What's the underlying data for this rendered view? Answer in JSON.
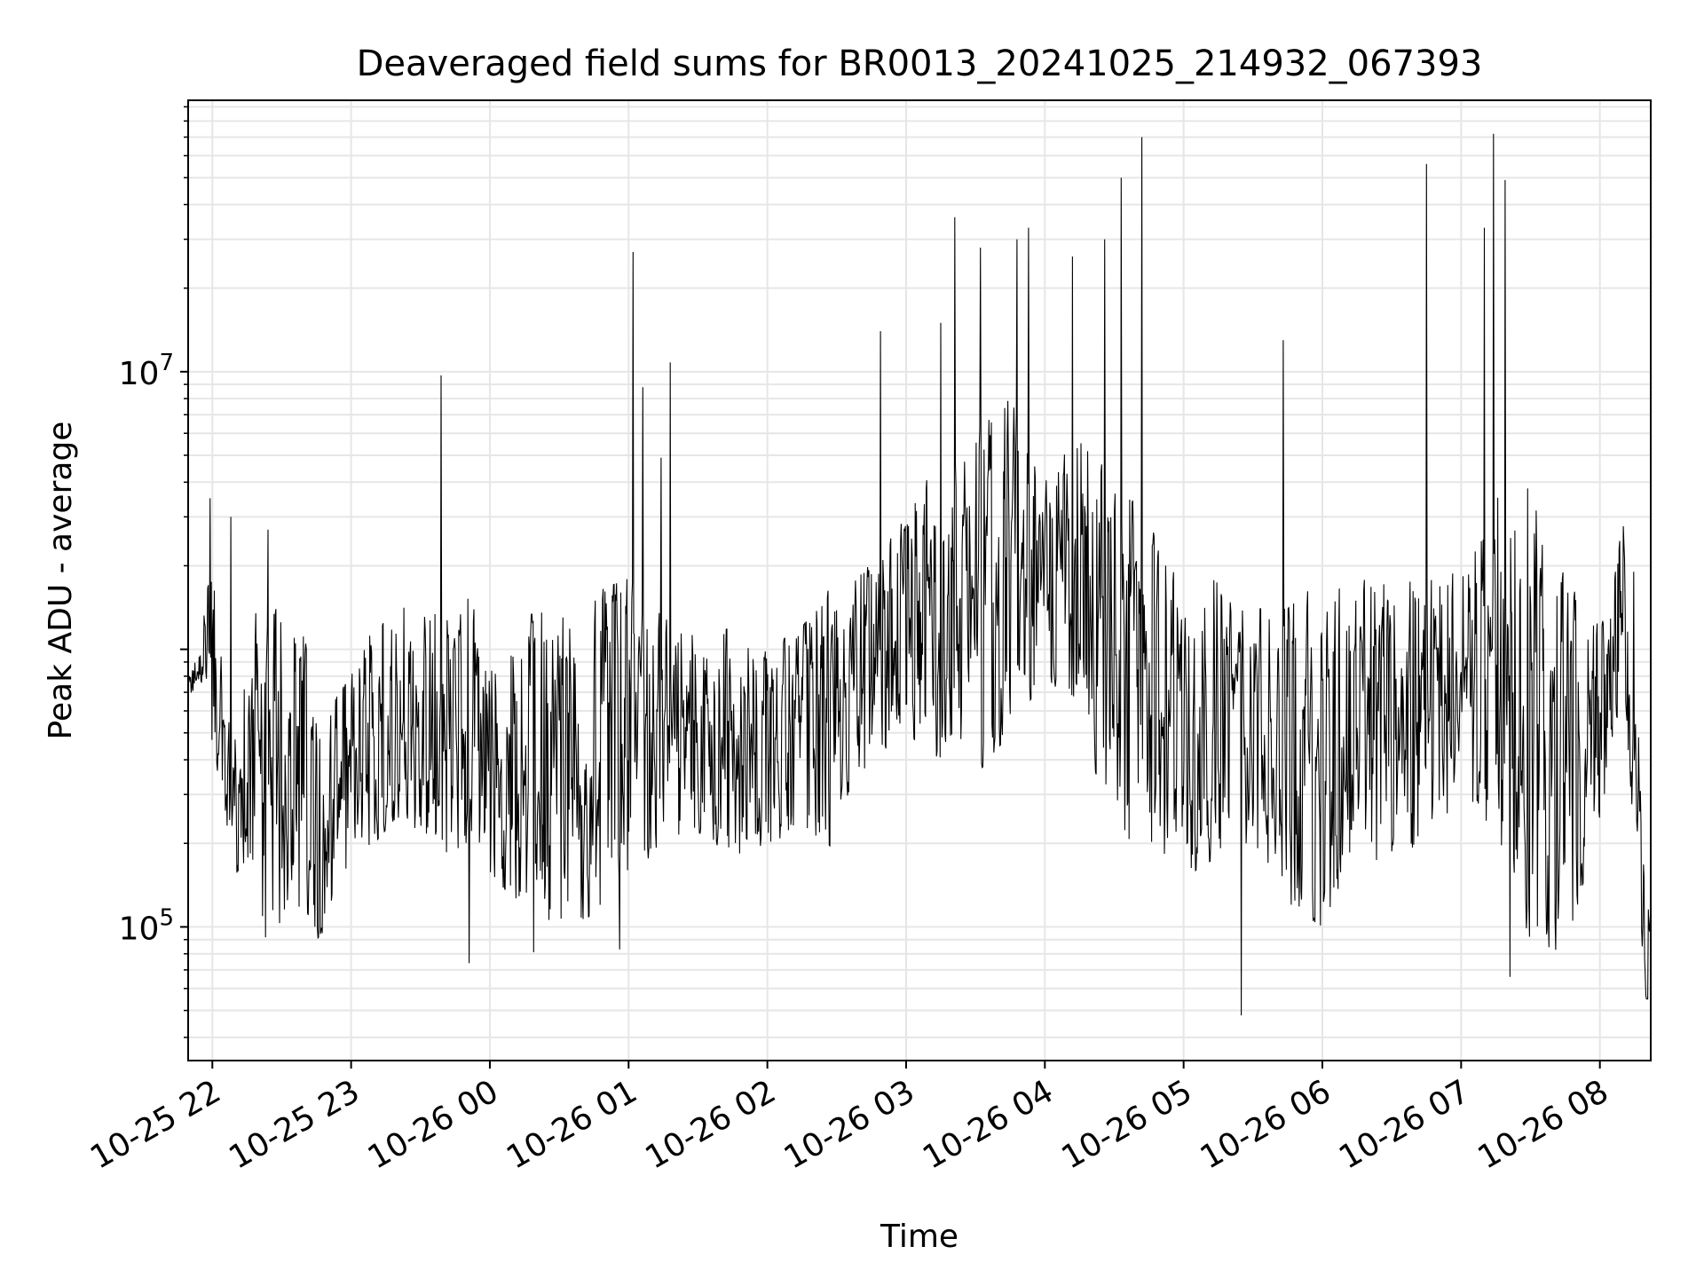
{
  "chart_data": {
    "type": "line",
    "title": "Deaveraged field sums for BR0013_20241025_214932_067393",
    "xlabel": "Time",
    "ylabel": "Peak ADU - average",
    "xlim": [
      "2024-10-25 21:49:32",
      "2024-10-26 08:22:00"
    ],
    "yscale": "log",
    "ylim": [
      33000,
      95000000
    ],
    "grid": true,
    "x_ticks": [
      {
        "t": "2024-10-25 22:00",
        "label": "10-25 22"
      },
      {
        "t": "2024-10-25 23:00",
        "label": "10-25 23"
      },
      {
        "t": "2024-10-26 00:00",
        "label": "10-26 00"
      },
      {
        "t": "2024-10-26 01:00",
        "label": "10-26 01"
      },
      {
        "t": "2024-10-26 02:00",
        "label": "10-26 02"
      },
      {
        "t": "2024-10-26 03:00",
        "label": "10-26 03"
      },
      {
        "t": "2024-10-26 04:00",
        "label": "10-26 04"
      },
      {
        "t": "2024-10-26 05:00",
        "label": "10-26 05"
      },
      {
        "t": "2024-10-26 06:00",
        "label": "10-26 06"
      },
      {
        "t": "2024-10-26 07:00",
        "label": "10-26 07"
      },
      {
        "t": "2024-10-26 08:00",
        "label": "10-26 08"
      }
    ],
    "y_ticks": [
      {
        "value": 100000,
        "base": "10",
        "exp": "5"
      },
      {
        "value": 10000000,
        "base": "10",
        "exp": "7"
      }
    ],
    "y_ticks_unlabeled": [
      1000000
    ],
    "line_color": "#000000",
    "series": [
      {
        "x": [
          "2024-10-25 21:49",
          "2024-10-25 21:52",
          "2024-10-25 21:55",
          "2024-10-25 21:58",
          "2024-10-25 22:00",
          "2024-10-25 22:03",
          "2024-10-25 22:06",
          "2024-10-25 22:09",
          "2024-10-25 22:12",
          "2024-10-25 22:15",
          "2024-10-25 22:20",
          "2024-10-25 22:25",
          "2024-10-25 22:30",
          "2024-10-25 22:35",
          "2024-10-25 22:40",
          "2024-10-25 22:45",
          "2024-10-25 22:50",
          "2024-10-25 22:55",
          "2024-10-25 23:00",
          "2024-10-25 23:10",
          "2024-10-25 23:20",
          "2024-10-25 23:30",
          "2024-10-25 23:40",
          "2024-10-25 23:50",
          "2024-10-26 00:00",
          "2024-10-26 00:15",
          "2024-10-26 00:30",
          "2024-10-26 00:45",
          "2024-10-26 01:00",
          "2024-10-26 01:15",
          "2024-10-26 01:30",
          "2024-10-26 01:45",
          "2024-10-26 02:00",
          "2024-10-26 02:15",
          "2024-10-26 02:30",
          "2024-10-26 02:45",
          "2024-10-26 03:00",
          "2024-10-26 03:15",
          "2024-10-26 03:30",
          "2024-10-26 03:45",
          "2024-10-26 04:00",
          "2024-10-26 04:15",
          "2024-10-26 04:30",
          "2024-10-26 04:45",
          "2024-10-26 05:00",
          "2024-10-26 05:15",
          "2024-10-26 05:30",
          "2024-10-26 05:45",
          "2024-10-26 06:00",
          "2024-10-26 06:15",
          "2024-10-26 06:30",
          "2024-10-26 06:45",
          "2024-10-26 07:00",
          "2024-10-26 07:15",
          "2024-10-26 07:30",
          "2024-10-26 07:45",
          "2024-10-26 08:00",
          "2024-10-26 08:05",
          "2024-10-26 08:10",
          "2024-10-26 08:15",
          "2024-10-26 08:20"
        ],
        "lo": [
          620000,
          700000,
          750000,
          600000,
          450000,
          300000,
          180000,
          120000,
          90000,
          80000,
          75000,
          85000,
          90000,
          100000,
          120000,
          90000,
          100000,
          110000,
          150000,
          200000,
          250000,
          200000,
          180000,
          200000,
          150000,
          120000,
          100000,
          110000,
          150000,
          200000,
          220000,
          180000,
          200000,
          180000,
          200000,
          400000,
          500000,
          400000,
          350000,
          500000,
          800000,
          600000,
          200000,
          180000,
          150000,
          180000,
          200000,
          120000,
          100000,
          200000,
          150000,
          200000,
          300000,
          200000,
          90000,
          80000,
          250000,
          400000,
          800000,
          200000,
          55000
        ],
        "hi": [
          750000,
          900000,
          1000000,
          2000000,
          2000000,
          1000000,
          800000,
          600000,
          500000,
          1200000,
          1400000,
          1500000,
          1300000,
          1300000,
          1200000,
          800000,
          600000,
          700000,
          800000,
          1300000,
          1500000,
          1400000,
          1500000,
          1700000,
          900000,
          1300000,
          1500000,
          1600000,
          1800000,
          1300000,
          1100000,
          1200000,
          1000000,
          1200000,
          1800000,
          2000000,
          3000000,
          5000000,
          6000000,
          8000000,
          4000000,
          6000000,
          4000000,
          3000000,
          2000000,
          1800000,
          1400000,
          1400000,
          1800000,
          1800000,
          1700000,
          1800000,
          1900000,
          3500000,
          4000000,
          1800000,
          1200000,
          1500000,
          3000000,
          2000000,
          120000
        ],
        "spikes": [
          {
            "t": "2024-10-25 21:59",
            "value": 3500000
          },
          {
            "t": "2024-10-25 22:08",
            "value": 3000000
          },
          {
            "t": "2024-10-25 22:24",
            "value": 2700000
          },
          {
            "t": "2024-10-25 23:39",
            "value": 9700000
          },
          {
            "t": "2024-10-25 23:51",
            "value": 74000
          },
          {
            "t": "2024-10-26 00:19",
            "value": 81000
          },
          {
            "t": "2024-10-26 00:56",
            "value": 83000
          },
          {
            "t": "2024-10-26 01:02",
            "value": 27000000
          },
          {
            "t": "2024-10-26 01:06",
            "value": 8800000
          },
          {
            "t": "2024-10-26 01:18",
            "value": 10800000
          },
          {
            "t": "2024-10-26 01:14",
            "value": 4900000
          },
          {
            "t": "2024-10-26 02:49",
            "value": 14000000
          },
          {
            "t": "2024-10-26 03:15",
            "value": 15000000
          },
          {
            "t": "2024-10-26 03:21",
            "value": 36000000
          },
          {
            "t": "2024-10-26 03:32",
            "value": 28000000
          },
          {
            "t": "2024-10-26 03:48",
            "value": 30000000
          },
          {
            "t": "2024-10-26 03:53",
            "value": 33000000
          },
          {
            "t": "2024-10-26 04:12",
            "value": 26000000
          },
          {
            "t": "2024-10-26 04:26",
            "value": 30000000
          },
          {
            "t": "2024-10-26 04:33",
            "value": 50000000
          },
          {
            "t": "2024-10-26 04:42",
            "value": 70000000
          },
          {
            "t": "2024-10-26 05:25",
            "value": 48000
          },
          {
            "t": "2024-10-26 05:43",
            "value": 13000000
          },
          {
            "t": "2024-10-26 06:45",
            "value": 56000000
          },
          {
            "t": "2024-10-26 07:10",
            "value": 33000000
          },
          {
            "t": "2024-10-26 07:14",
            "value": 72000000
          },
          {
            "t": "2024-10-26 07:19",
            "value": 49000000
          },
          {
            "t": "2024-10-26 07:21",
            "value": 66000
          }
        ]
      }
    ]
  }
}
